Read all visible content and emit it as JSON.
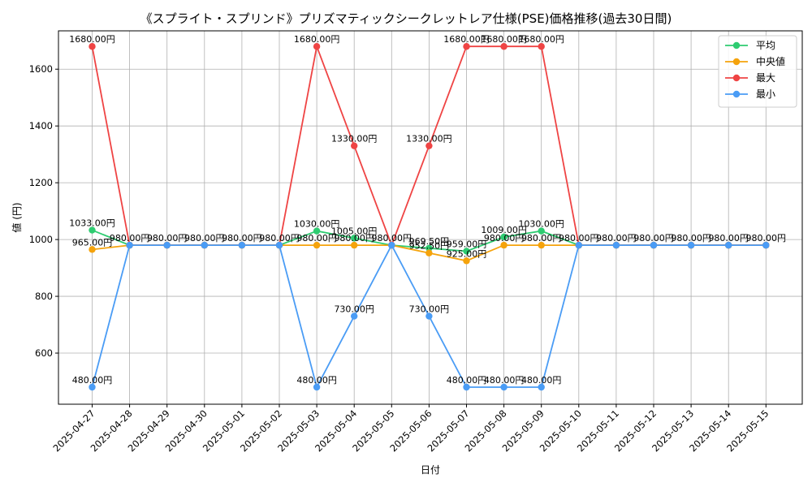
{
  "chart_data": {
    "type": "line",
    "title": "《スプライト・スプリンド》プリズマティックシークレットレア仕様(PSE)価格推移(過去30日間)",
    "xlabel": "日付",
    "ylabel": "値 (円)",
    "ylim": [
      420,
      1735
    ],
    "yticks": [
      600,
      800,
      1000,
      1200,
      1400,
      1600
    ],
    "grid": true,
    "legend_position": "top-right",
    "categories": [
      "2025-04-27",
      "2025-04-28",
      "2025-04-29",
      "2025-04-30",
      "2025-05-01",
      "2025-05-02",
      "2025-05-03",
      "2025-05-04",
      "2025-05-05",
      "2025-05-06",
      "2025-05-07",
      "2025-05-08",
      "2025-05-09",
      "2025-05-10",
      "2025-05-11",
      "2025-05-12",
      "2025-05-13",
      "2025-05-14",
      "2025-05-15"
    ],
    "series": [
      {
        "name": "平均",
        "color": "#2ecc71",
        "values": [
          1033,
          980,
          980,
          980,
          980,
          980,
          1030,
          1005,
          980,
          969.5,
          959,
          1009,
          1030,
          980,
          980,
          980,
          980,
          980,
          980
        ]
      },
      {
        "name": "中央値",
        "color": "#f5a30c",
        "values": [
          965,
          980,
          980,
          980,
          980,
          980,
          980,
          980,
          980,
          952.5,
          925,
          980,
          980,
          980,
          980,
          980,
          980,
          980,
          980
        ]
      },
      {
        "name": "最大",
        "color": "#ef4444",
        "values": [
          1680,
          980,
          980,
          980,
          980,
          980,
          1680,
          1330,
          980,
          1330,
          1680,
          1680,
          1680,
          980,
          980,
          980,
          980,
          980,
          980
        ]
      },
      {
        "name": "最小",
        "color": "#4a9cf5",
        "values": [
          480,
          980,
          980,
          980,
          980,
          980,
          480,
          730,
          980,
          730,
          480,
          480,
          480,
          980,
          980,
          980,
          980,
          980,
          980
        ]
      }
    ],
    "data_labels": [
      {
        "series": 0,
        "index": 0,
        "text": "1033.00円"
      },
      {
        "series": 0,
        "index": 6,
        "text": "1030.00円"
      },
      {
        "series": 0,
        "index": 7,
        "text": "1005.00円"
      },
      {
        "series": 0,
        "index": 9,
        "text": "969.50円"
      },
      {
        "series": 0,
        "index": 10,
        "text": "959.00円"
      },
      {
        "series": 0,
        "index": 11,
        "text": "1009.00円"
      },
      {
        "series": 0,
        "index": 12,
        "text": "1030.00円"
      },
      {
        "series": 1,
        "index": 0,
        "text": "965.00円"
      },
      {
        "series": 1,
        "index": 6,
        "text": "980.00円"
      },
      {
        "series": 1,
        "index": 7,
        "text": "980.00円"
      },
      {
        "series": 1,
        "index": 9,
        "text": "952.50円"
      },
      {
        "series": 1,
        "index": 10,
        "text": "925.00円"
      },
      {
        "series": 1,
        "index": 11,
        "text": "980.00円"
      },
      {
        "series": 1,
        "index": 12,
        "text": "980.00円"
      },
      {
        "series": 2,
        "index": 0,
        "text": "1680.00円"
      },
      {
        "series": 2,
        "index": 6,
        "text": "1680.00円"
      },
      {
        "series": 2,
        "index": 7,
        "text": "1330.00円"
      },
      {
        "series": 2,
        "index": 9,
        "text": "1330.00円"
      },
      {
        "series": 2,
        "index": 10,
        "text": "1680.00円"
      },
      {
        "series": 2,
        "index": 11,
        "text": "1680.00円"
      },
      {
        "series": 2,
        "index": 12,
        "text": "1680.00円"
      },
      {
        "series": 3,
        "index": 0,
        "text": "480.00円"
      },
      {
        "series": 3,
        "index": 1,
        "text": "980.00円"
      },
      {
        "series": 3,
        "index": 2,
        "text": "980.00円"
      },
      {
        "series": 3,
        "index": 3,
        "text": "980.00円"
      },
      {
        "series": 3,
        "index": 4,
        "text": "980.00円"
      },
      {
        "series": 3,
        "index": 5,
        "text": "980.00円"
      },
      {
        "series": 3,
        "index": 6,
        "text": "480.00円"
      },
      {
        "series": 3,
        "index": 7,
        "text": "730.00円"
      },
      {
        "series": 3,
        "index": 8,
        "text": "980.00円"
      },
      {
        "series": 3,
        "index": 9,
        "text": "730.00円"
      },
      {
        "series": 3,
        "index": 10,
        "text": "480.00円"
      },
      {
        "series": 3,
        "index": 11,
        "text": "480.00円"
      },
      {
        "series": 3,
        "index": 12,
        "text": "480.00円"
      },
      {
        "series": 3,
        "index": 13,
        "text": "980.00円"
      },
      {
        "series": 3,
        "index": 14,
        "text": "980.00円"
      },
      {
        "series": 3,
        "index": 15,
        "text": "980.00円"
      },
      {
        "series": 3,
        "index": 16,
        "text": "980.00円"
      },
      {
        "series": 3,
        "index": 17,
        "text": "980.00円"
      },
      {
        "series": 3,
        "index": 18,
        "text": "980.00円"
      }
    ]
  }
}
